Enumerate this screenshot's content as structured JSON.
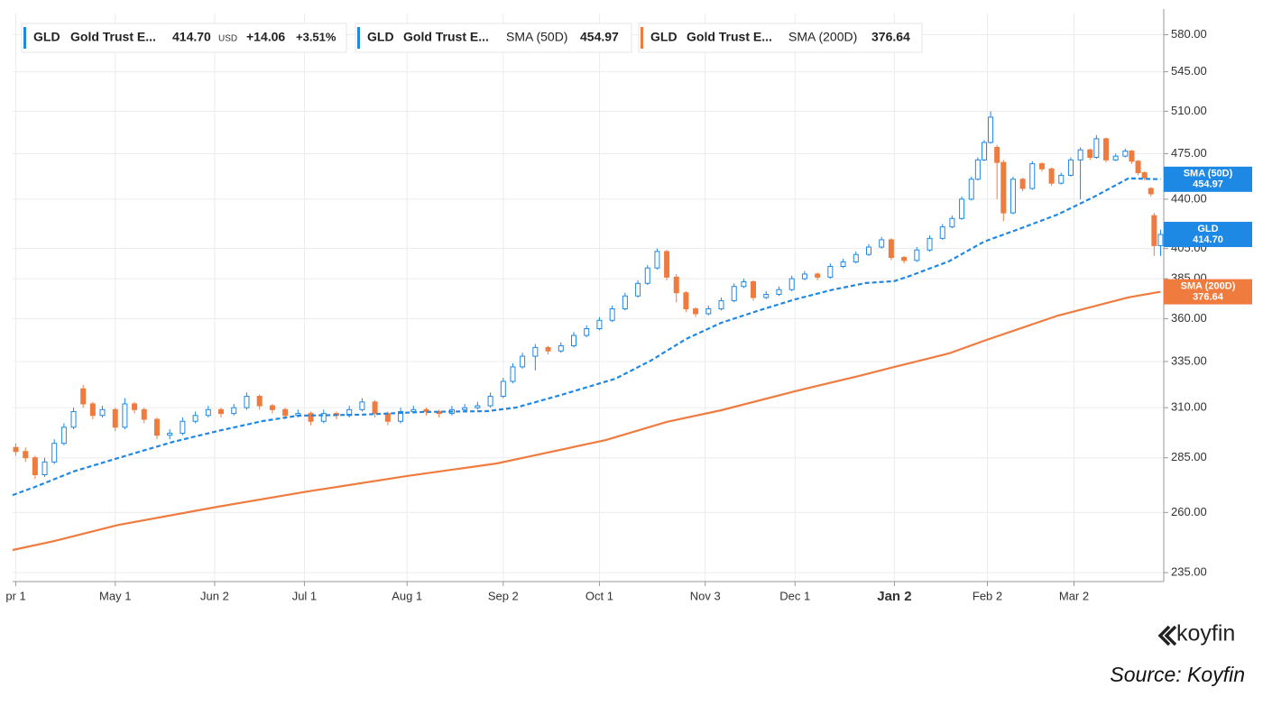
{
  "chart_data": {
    "type": "candlestick",
    "y_scale": "log",
    "grid": true,
    "xlim": [
      -1,
      358
    ],
    "ylim": [
      231.5,
      601
    ],
    "xticks": [
      {
        "value": 0,
        "label": "pr 1"
      },
      {
        "value": 31,
        "label": "May 1"
      },
      {
        "value": 62,
        "label": "Jun 2"
      },
      {
        "value": 90,
        "label": "Jul 1"
      },
      {
        "value": 122,
        "label": "Aug 1"
      },
      {
        "value": 152,
        "label": "Sep 2"
      },
      {
        "value": 182,
        "label": "Oct 1"
      },
      {
        "value": 215,
        "label": "Nov 3"
      },
      {
        "value": 243,
        "label": "Dec 1"
      },
      {
        "value": 274,
        "label": "Jan 2",
        "emphasis": true
      },
      {
        "value": 303,
        "label": "Feb 2"
      },
      {
        "value": 330,
        "label": "Mar 2"
      }
    ],
    "yticks": [
      {
        "value": 235,
        "label": "235.00"
      },
      {
        "value": 260,
        "label": "260.00"
      },
      {
        "value": 285,
        "label": "285.00"
      },
      {
        "value": 310,
        "label": "310.00"
      },
      {
        "value": 335,
        "label": "335.00"
      },
      {
        "value": 360,
        "label": "360.00"
      },
      {
        "value": 385,
        "label": "385.00"
      },
      {
        "value": 405,
        "label": "405.00"
      },
      {
        "value": 440,
        "label": "440.00"
      },
      {
        "value": 475,
        "label": "475.00"
      },
      {
        "value": 510,
        "label": "510.00"
      },
      {
        "value": 545,
        "label": "545.00"
      },
      {
        "value": 580,
        "label": "580.00"
      }
    ],
    "candles": {
      "name": "GLD",
      "full_name": "Gold Trust E...",
      "price": {
        "value": 414.7,
        "label": "414.70"
      },
      "currency": "USD",
      "change": {
        "value": 14.06,
        "label": "+14.06"
      },
      "change_pct": {
        "value": 3.51,
        "label": "+3.51%"
      },
      "change_color": "#1a7f37",
      "color": "#1e88e5",
      "up_color": "#1e88e5",
      "down_color": "#f07b3f",
      "x": [
        0,
        3,
        6,
        9,
        12,
        15,
        18,
        21,
        24,
        27,
        31,
        34,
        37,
        40,
        44,
        48,
        52,
        56,
        60,
        64,
        68,
        72,
        76,
        80,
        84,
        88,
        92,
        96,
        100,
        104,
        108,
        112,
        116,
        120,
        124,
        128,
        132,
        136,
        140,
        144,
        148,
        152,
        155,
        158,
        162,
        166,
        170,
        174,
        178,
        182,
        186,
        190,
        194,
        197,
        200,
        203,
        206,
        209,
        212,
        216,
        220,
        224,
        227,
        230,
        234,
        238,
        242,
        246,
        250,
        254,
        258,
        262,
        266,
        270,
        273,
        277,
        281,
        285,
        289,
        292,
        295,
        298,
        300,
        302,
        304,
        306,
        308,
        311,
        314,
        317,
        320,
        323,
        326,
        329,
        332,
        335,
        337,
        340,
        343,
        346,
        348,
        350,
        352,
        354,
        355,
        357
      ],
      "ohlc": [
        [
          290,
          292,
          286,
          288
        ],
        [
          288,
          290,
          283,
          285
        ],
        [
          285,
          286,
          275,
          277
        ],
        [
          277,
          285,
          276,
          283
        ],
        [
          283,
          294,
          282,
          292
        ],
        [
          292,
          302,
          291,
          300
        ],
        [
          300,
          310,
          299,
          308
        ],
        [
          320,
          322,
          310,
          312
        ],
        [
          312,
          313,
          304,
          306
        ],
        [
          306,
          311,
          305,
          309
        ],
        [
          309,
          310,
          298,
          300
        ],
        [
          300,
          315,
          299,
          312
        ],
        [
          312,
          313,
          307,
          309
        ],
        [
          309,
          310,
          302,
          304
        ],
        [
          304,
          305,
          294,
          296
        ],
        [
          296,
          299,
          294,
          297
        ],
        [
          297,
          305,
          296,
          303
        ],
        [
          303,
          308,
          302,
          306
        ],
        [
          306,
          311,
          305,
          309
        ],
        [
          309,
          310,
          305,
          307
        ],
        [
          307,
          312,
          306,
          310
        ],
        [
          310,
          318,
          309,
          316
        ],
        [
          316,
          317,
          309,
          311
        ],
        [
          311,
          312,
          307,
          309
        ],
        [
          309,
          310,
          304,
          306
        ],
        [
          306,
          309,
          305,
          307
        ],
        [
          307,
          308,
          301,
          303
        ],
        [
          303,
          309,
          302,
          307
        ],
        [
          307,
          308,
          304,
          306
        ],
        [
          306,
          311,
          305,
          309
        ],
        [
          309,
          315,
          308,
          313
        ],
        [
          313,
          314,
          305,
          307
        ],
        [
          307,
          308,
          301,
          303
        ],
        [
          303,
          310,
          302,
          308
        ],
        [
          308,
          311,
          307,
          309
        ],
        [
          309,
          310,
          306,
          308
        ],
        [
          308,
          309,
          305,
          307
        ],
        [
          307,
          311,
          306,
          309
        ],
        [
          309,
          312,
          308,
          310
        ],
        [
          310,
          313,
          309,
          311
        ],
        [
          311,
          318,
          310,
          316
        ],
        [
          316,
          326,
          315,
          324
        ],
        [
          324,
          334,
          323,
          332
        ],
        [
          332,
          340,
          331,
          338
        ],
        [
          338,
          345,
          330,
          343
        ],
        [
          343,
          344,
          339,
          341
        ],
        [
          341,
          346,
          340,
          344
        ],
        [
          344,
          352,
          343,
          350
        ],
        [
          350,
          356,
          349,
          354
        ],
        [
          354,
          361,
          353,
          359
        ],
        [
          359,
          368,
          358,
          366
        ],
        [
          366,
          376,
          365,
          374
        ],
        [
          374,
          384,
          373,
          382
        ],
        [
          382,
          394,
          381,
          392
        ],
        [
          392,
          405,
          391,
          403
        ],
        [
          403,
          404,
          384,
          386
        ],
        [
          386,
          388,
          370,
          376
        ],
        [
          376,
          377,
          364,
          366
        ],
        [
          366,
          367,
          361,
          363
        ],
        [
          363,
          368,
          362,
          366
        ],
        [
          366,
          373,
          365,
          371
        ],
        [
          371,
          382,
          370,
          380
        ],
        [
          380,
          385,
          379,
          383
        ],
        [
          383,
          384,
          371,
          373
        ],
        [
          373,
          377,
          372,
          375
        ],
        [
          375,
          380,
          374,
          378
        ],
        [
          378,
          387,
          377,
          385
        ],
        [
          385,
          390,
          384,
          388
        ],
        [
          388,
          389,
          384,
          386
        ],
        [
          386,
          395,
          385,
          393
        ],
        [
          393,
          398,
          392,
          396
        ],
        [
          396,
          403,
          395,
          401
        ],
        [
          401,
          408,
          400,
          406
        ],
        [
          406,
          413,
          405,
          411
        ],
        [
          411,
          412,
          397,
          399
        ],
        [
          399,
          400,
          395,
          397
        ],
        [
          397,
          406,
          396,
          404
        ],
        [
          404,
          414,
          403,
          412
        ],
        [
          412,
          422,
          411,
          420
        ],
        [
          420,
          428,
          419,
          426
        ],
        [
          426,
          442,
          425,
          440
        ],
        [
          440,
          457,
          439,
          455
        ],
        [
          455,
          472,
          454,
          470
        ],
        [
          470,
          486,
          469,
          484
        ],
        [
          484,
          510,
          483,
          505
        ],
        [
          480,
          482,
          440,
          468
        ],
        [
          468,
          470,
          424,
          430
        ],
        [
          430,
          457,
          429,
          455
        ],
        [
          455,
          456,
          446,
          448
        ],
        [
          448,
          469,
          447,
          467
        ],
        [
          467,
          468,
          461,
          463
        ],
        [
          463,
          464,
          450,
          452
        ],
        [
          452,
          460,
          451,
          458
        ],
        [
          458,
          472,
          457,
          470
        ],
        [
          470,
          480,
          440,
          478
        ],
        [
          478,
          479,
          470,
          472
        ],
        [
          472,
          490,
          471,
          487
        ],
        [
          487,
          488,
          468,
          470
        ],
        [
          470,
          475,
          469,
          473
        ],
        [
          473,
          479,
          472,
          477
        ],
        [
          477,
          478,
          467,
          469
        ],
        [
          469,
          470,
          458,
          460
        ],
        [
          460,
          461,
          454,
          456
        ],
        [
          448,
          449,
          442,
          444
        ],
        [
          428,
          430,
          400,
          407
        ],
        [
          407,
          418,
          400,
          414.7
        ]
      ]
    },
    "series": [
      {
        "name": "SMA (50D)",
        "color": "#1e88e5",
        "dashed": true,
        "x": [
          -1,
          6,
          18,
          32,
          49,
          63,
          77,
          88,
          108,
          127,
          147,
          156,
          170,
          187,
          198,
          209,
          220,
          232,
          243,
          254,
          265,
          274,
          279,
          291,
          302,
          313,
          325,
          336,
          347,
          357
        ],
        "values": [
          267.7,
          271.4,
          278.5,
          284.9,
          292.7,
          298.1,
          303.1,
          305.9,
          306.4,
          307.8,
          308.2,
          310.1,
          316.7,
          325.5,
          335.5,
          347.9,
          357.5,
          365.2,
          371.9,
          377.6,
          382.2,
          383.4,
          386.9,
          396.4,
          409.8,
          418.6,
          428.9,
          441.4,
          455.7,
          454.97
        ]
      },
      {
        "name": "SMA (200D)",
        "color": "#f07b3f",
        "dashed": false,
        "x": [
          -1,
          12,
          32,
          63,
          91,
          122,
          150,
          184,
          203,
          220,
          243,
          263,
          274,
          291,
          302,
          325,
          347,
          357
        ],
        "values": [
          244.1,
          247.8,
          254.6,
          262.5,
          269.3,
          276.4,
          282.3,
          293.6,
          302.7,
          308.7,
          318.7,
          327.0,
          332.0,
          339.6,
          346.9,
          361.9,
          373.1,
          376.64
        ]
      }
    ]
  },
  "footer": {
    "brand": "koyfin",
    "source": "Source: Koyfin"
  }
}
